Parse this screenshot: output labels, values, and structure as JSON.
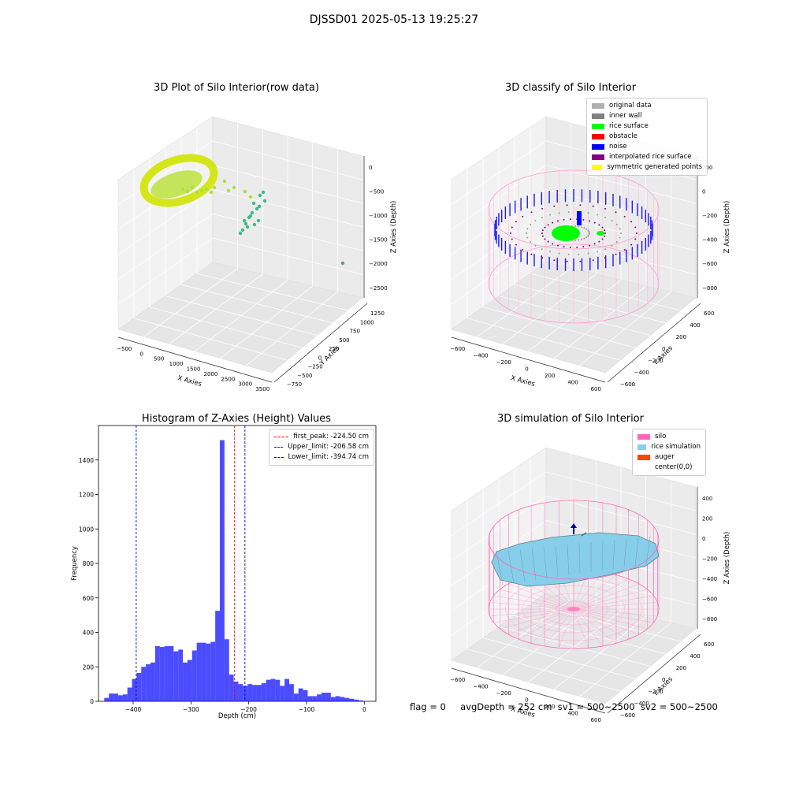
{
  "suptitle": "DJSSD01 2025-05-13 19:25:27",
  "panels": {
    "raw": {
      "title": "3D Plot of Silo Interior(row data)",
      "xlabel": "X Axies",
      "ylabel": "Y Axies",
      "zlabel": "Z Axies (Depth)",
      "xticks": [
        "−500",
        "0",
        "500",
        "1000",
        "1500",
        "2000",
        "2500",
        "3000",
        "3500"
      ],
      "yticks": [
        "−750",
        "−500",
        "−250",
        "0",
        "250",
        "500",
        "750",
        "1000",
        "1250"
      ],
      "zticks": [
        "0",
        "−500",
        "−1000",
        "−1500",
        "−2000",
        "−2500"
      ]
    },
    "classify": {
      "title": "3D classify of Silo Interior",
      "xlabel": "X Axies",
      "ylabel": "Y Axies",
      "zlabel": "Z Axies (Depth)",
      "xticks": [
        "−600",
        "−400",
        "−200",
        "0",
        "200",
        "400",
        "600"
      ],
      "yticks": [
        "−600",
        "−400",
        "−200",
        "0",
        "200",
        "400",
        "600"
      ],
      "zticks": [
        "200",
        "0",
        "−200",
        "−400",
        "−600",
        "−800"
      ],
      "legend": [
        {
          "label": "original data",
          "color": "#b0b0b0"
        },
        {
          "label": "inner wall",
          "color": "#808080"
        },
        {
          "label": "rice surface",
          "color": "#00ff00"
        },
        {
          "label": "obstacle",
          "color": "#ff0000"
        },
        {
          "label": "noise",
          "color": "#0000ff"
        },
        {
          "label": "interpolated rice surface",
          "color": "#800080"
        },
        {
          "label": "symmetric generated points",
          "color": "#ffff00"
        }
      ]
    },
    "simulation": {
      "title": "3D simulation of Silo Interior",
      "xlabel": "X Axies",
      "ylabel": "Y Axies",
      "zlabel": "Z Axies (Depth)",
      "xticks": [
        "−600",
        "−400",
        "−200",
        "0",
        "200",
        "400",
        "600"
      ],
      "yticks": [
        "−600",
        "−400",
        "−200",
        "0",
        "200",
        "400",
        "600"
      ],
      "zticks": [
        "400",
        "200",
        "0",
        "−200",
        "−400",
        "−600",
        "−800"
      ],
      "legend": [
        {
          "label": "silo",
          "color": "#ff69b4"
        },
        {
          "label": "rice simulation",
          "color": "#87ceeb"
        },
        {
          "label": "auger",
          "color": "#ff4500"
        },
        {
          "label": "center(0,0)",
          "color": ""
        }
      ]
    }
  },
  "chart_data": {
    "type": "bar",
    "title": "Histogram of Z-Axies (Height) Values",
    "xlabel": "Depth (cm)",
    "ylabel": "Frequency",
    "xlim": [
      -460,
      20
    ],
    "ylim": [
      0,
      1600
    ],
    "xticks": [
      -400,
      -300,
      -200,
      -100,
      0
    ],
    "yticks": [
      0,
      200,
      400,
      600,
      800,
      1000,
      1200,
      1400
    ],
    "bar_color": "#0000ff",
    "bin_width": 8,
    "bin_starts": [
      -450,
      -442,
      -434,
      -426,
      -418,
      -410,
      -402,
      -394,
      -386,
      -378,
      -370,
      -362,
      -354,
      -346,
      -338,
      -330,
      -322,
      -314,
      -306,
      -298,
      -290,
      -282,
      -274,
      -266,
      -258,
      -250,
      -242,
      -234,
      -226,
      -218,
      -210,
      -202,
      -194,
      -186,
      -178,
      -170,
      -162,
      -154,
      -146,
      -138,
      -130,
      -122,
      -114,
      -106,
      -98,
      -90,
      -82,
      -74,
      -66,
      -58,
      -50,
      -42,
      -34,
      -26,
      -18,
      -10
    ],
    "values": [
      20,
      45,
      45,
      35,
      40,
      80,
      130,
      165,
      200,
      215,
      225,
      320,
      315,
      320,
      320,
      290,
      300,
      225,
      240,
      295,
      340,
      340,
      335,
      345,
      525,
      1515,
      360,
      155,
      115,
      100,
      90,
      100,
      95,
      95,
      105,
      125,
      130,
      125,
      90,
      130,
      100,
      45,
      75,
      65,
      30,
      30,
      40,
      50,
      50,
      25,
      30,
      25,
      20,
      15,
      10,
      5
    ],
    "lines": [
      {
        "label": "first_peak: -224.50 cm",
        "x": -224.5,
        "color": "#ff0000"
      },
      {
        "label": "Upper_limit: -206.58 cm",
        "x": -206.58,
        "color": "#0000cc"
      },
      {
        "label": "Lower_limit: -394.74 cm",
        "x": -394.74,
        "color": "#0000cc"
      }
    ]
  },
  "footer": {
    "flag": "flag = 0",
    "avg": "avgDepth = 252 cm",
    "sv1": "sv1 = 500~2500",
    "sv2": "sv2 = 500~2500"
  }
}
